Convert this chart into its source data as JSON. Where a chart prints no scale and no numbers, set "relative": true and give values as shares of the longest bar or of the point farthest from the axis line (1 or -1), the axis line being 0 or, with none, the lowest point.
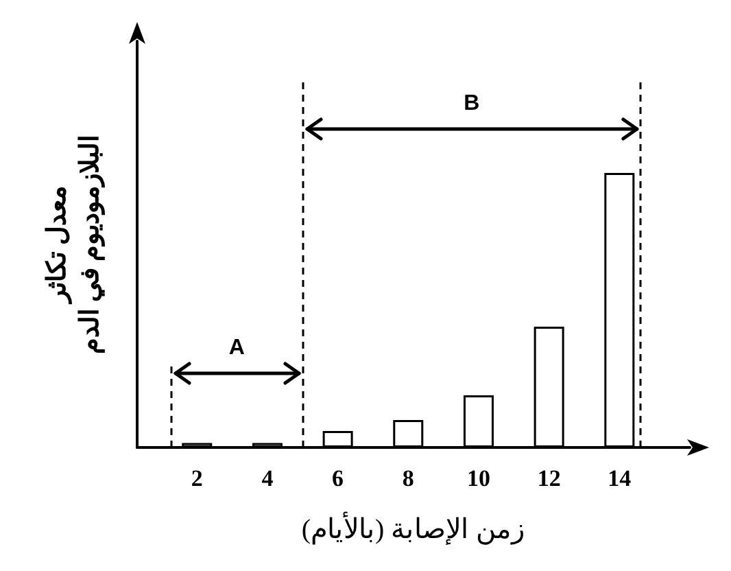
{
  "chart_data": {
    "type": "bar",
    "relative": true,
    "x": [
      2,
      4,
      6,
      8,
      10,
      12,
      14
    ],
    "xlim": [
      0.3,
      16
    ],
    "xticks": [
      2,
      4,
      6,
      8,
      10,
      12,
      14
    ],
    "values": [
      0.016,
      0.016,
      0.06,
      0.1,
      0.19,
      0.44,
      1
    ],
    "color": "#ffffff",
    "xlabel": "زمن الإصابة (بالأيام)",
    "ylabel": "معدل تكاثر\nالبلازموديوم في الدم",
    "ref_lines": [
      {
        "axis": "x",
        "value": 1.26
      },
      {
        "axis": "x",
        "value": 5
      },
      {
        "axis": "x",
        "value": 14.6
      }
    ],
    "line_style": "dashed",
    "annotations": [
      "A",
      "B"
    ],
    "grid": false
  }
}
